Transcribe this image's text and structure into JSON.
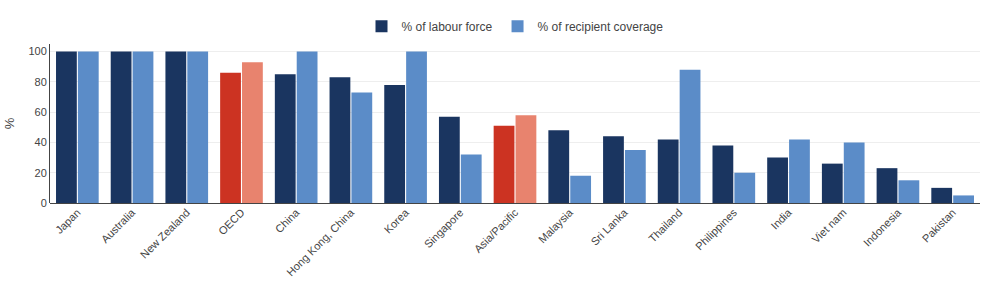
{
  "chart_data": {
    "type": "bar",
    "categories": [
      "Japan",
      "Australia",
      "New Zealand",
      "OECD",
      "China",
      "Hong Kong, China",
      "Korea",
      "Singapore",
      "Asia/Pacific",
      "Malaysia",
      "Sri Lanka",
      "Thailand",
      "Philippines",
      "India",
      "Viet nam",
      "Indonesia",
      "Pakistan"
    ],
    "series": [
      {
        "name": "% of labour force",
        "values": [
          100,
          100,
          100,
          86,
          85,
          83,
          78,
          57,
          51,
          48,
          44,
          42,
          38,
          30,
          26,
          23,
          10
        ],
        "colors": [
          "#1a3560",
          "#1a3560",
          "#1a3560",
          "#cc3322",
          "#1a3560",
          "#1a3560",
          "#1a3560",
          "#1a3560",
          "#cc3322",
          "#1a3560",
          "#1a3560",
          "#1a3560",
          "#1a3560",
          "#1a3560",
          "#1a3560",
          "#1a3560",
          "#1a3560"
        ]
      },
      {
        "name": "% of recipient coverage",
        "values": [
          100,
          100,
          100,
          93,
          100,
          73,
          100,
          32,
          58,
          18,
          35,
          88,
          20,
          42,
          40,
          15,
          5
        ],
        "colors": [
          "#5b8cc8",
          "#5b8cc8",
          "#5b8cc8",
          "#e8836e",
          "#5b8cc8",
          "#5b8cc8",
          "#5b8cc8",
          "#5b8cc8",
          "#e8836e",
          "#5b8cc8",
          "#5b8cc8",
          "#5b8cc8",
          "#5b8cc8",
          "#5b8cc8",
          "#5b8cc8",
          "#5b8cc8",
          "#5b8cc8"
        ]
      }
    ],
    "ylabel": "%",
    "ylim": [
      0,
      105
    ],
    "yticks": [
      0,
      20,
      40,
      60,
      80,
      100
    ],
    "grid": true,
    "legend": "top"
  }
}
